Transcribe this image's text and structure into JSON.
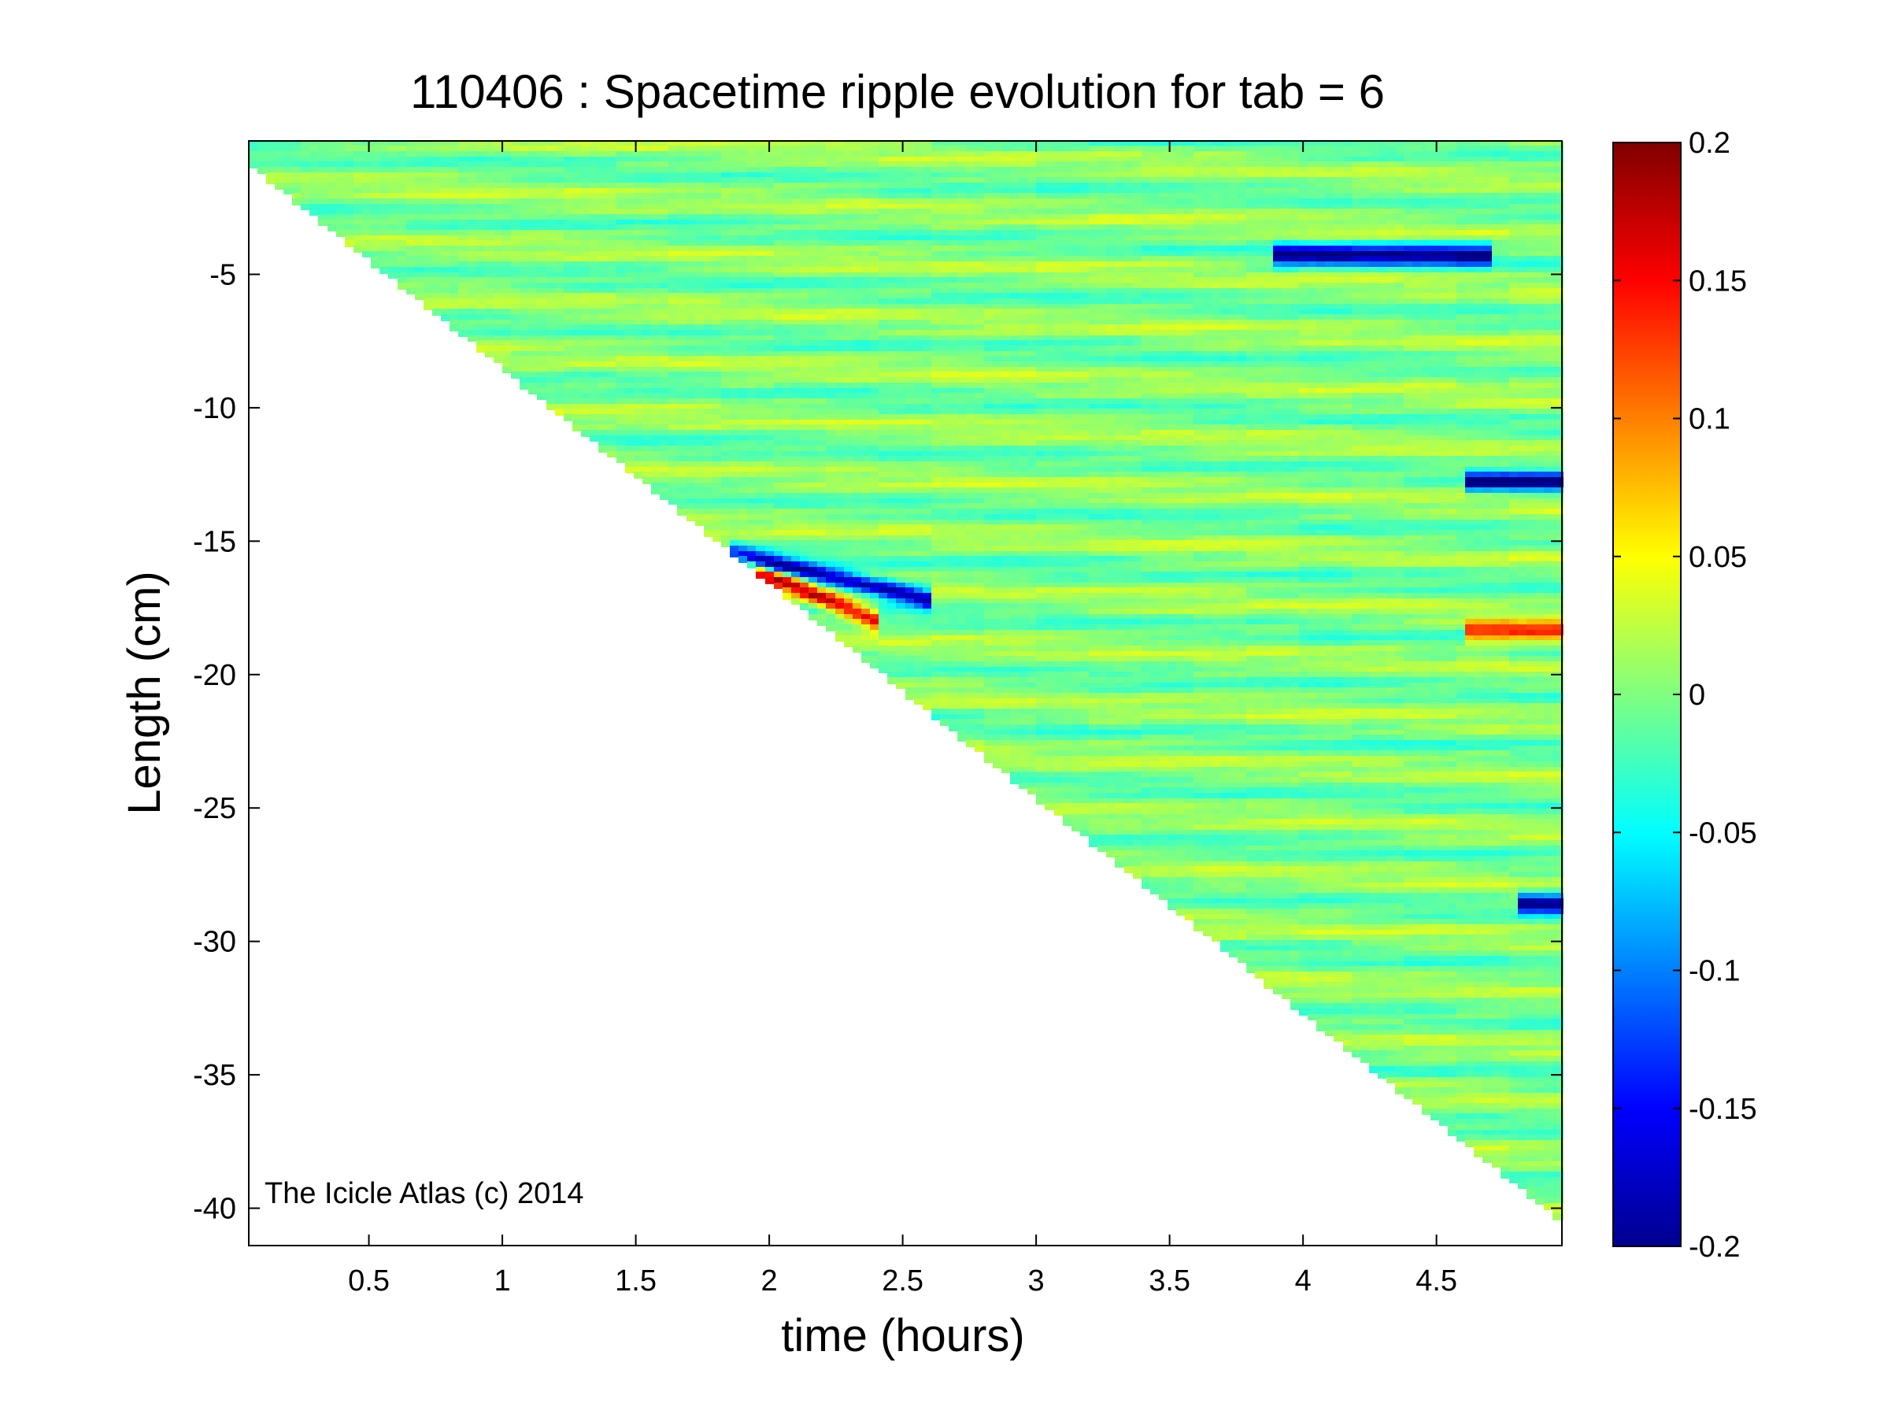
{
  "chart_data": {
    "type": "heatmap",
    "title": "110406 : Spacetime ripple evolution for tab = 6",
    "xlabel": "time (hours)",
    "ylabel": "Length (cm)",
    "xlim": [
      0.05,
      4.97
    ],
    "ylim": [
      -41.4,
      0.0
    ],
    "xticks": [
      0.5,
      1,
      1.5,
      2,
      2.5,
      3,
      3.5,
      4,
      4.5
    ],
    "xtick_labels": [
      "0.5",
      "1",
      "1.5",
      "2",
      "2.5",
      "3",
      "3.5",
      "4",
      "4.5"
    ],
    "yticks": [
      -5,
      -10,
      -15,
      -20,
      -25,
      -30,
      -35,
      -40
    ],
    "ytick_labels": [
      "-5",
      "-10",
      "-15",
      "-20",
      "-25",
      "-30",
      "-35",
      "-40"
    ],
    "colormap": "jet",
    "clim": [
      -0.2,
      0.2
    ],
    "colorbar_ticks": [
      0.2,
      0.15,
      0.1,
      0.05,
      0,
      -0.05,
      -0.1,
      -0.15,
      -0.2
    ],
    "colorbar_tick_labels": [
      "0.2",
      "0.15",
      "0.1",
      "0.05",
      "0",
      "-0.05",
      "-0.1",
      "-0.15",
      "-0.2"
    ],
    "data_region": "lower-left triangle empty; icicle length grows ~8.4 cm per hour, reaching -40.5 cm at 4.97 h",
    "annotation": "The Icicle Atlas (c) 2014",
    "features": [
      {
        "t_start": 1.85,
        "t_end": 2.6,
        "l_start": -15.5,
        "l_end": -17.2,
        "amplitude": -0.2
      },
      {
        "t_start": 1.6,
        "t_end": 2.4,
        "l_start": -14.6,
        "l_end": -18.0,
        "amplitude": 0.17
      },
      {
        "t_start": 3.9,
        "t_end": 4.7,
        "l_start": -4.3,
        "l_end": -4.3,
        "amplitude": -0.2
      },
      {
        "t_start": 4.6,
        "t_end": 4.97,
        "l_start": -12.8,
        "l_end": -12.8,
        "amplitude": -0.2
      },
      {
        "t_start": 4.6,
        "t_end": 4.97,
        "l_start": -18.4,
        "l_end": -18.4,
        "amplitude": 0.16
      },
      {
        "t_start": 4.8,
        "t_end": 4.97,
        "l_start": -28.6,
        "l_end": -28.6,
        "amplitude": -0.2
      }
    ]
  }
}
